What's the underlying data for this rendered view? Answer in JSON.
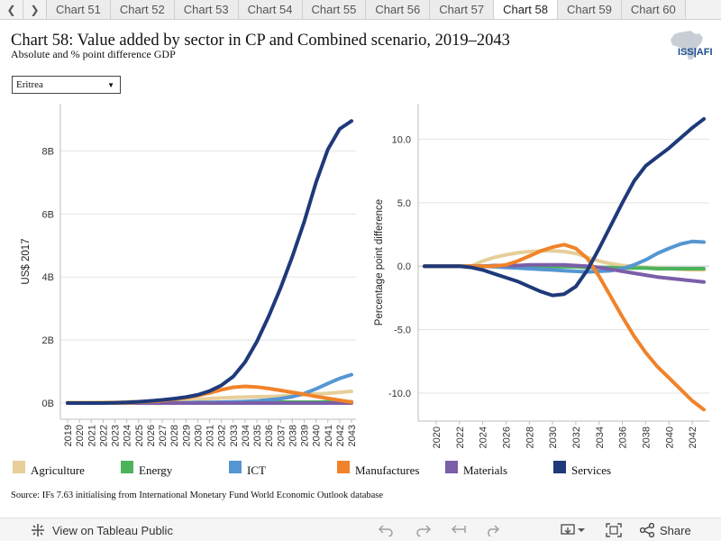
{
  "tabs": {
    "prev_icon": "chevron-left-icon",
    "next_icon": "chevron-right-icon",
    "items": [
      "Chart 51",
      "Chart 52",
      "Chart 53",
      "Chart 54",
      "Chart 55",
      "Chart 56",
      "Chart 57",
      "Chart 58",
      "Chart 59",
      "Chart 60"
    ],
    "active": "Chart 58"
  },
  "header": {
    "title": "Chart 58: Value added by sector in CP and Combined scenario, 2019–2043",
    "subtitle": "Absolute and % point difference GDP",
    "logo_text": "ISS|AFI"
  },
  "filter": {
    "selected": "Eritrea"
  },
  "legend": [
    {
      "name": "Agriculture",
      "color": "#e6cf9a"
    },
    {
      "name": "Energy",
      "color": "#4cb35c"
    },
    {
      "name": "ICT",
      "color": "#5596d2"
    },
    {
      "name": "Manufactures",
      "color": "#f0832a"
    },
    {
      "name": "Materials",
      "color": "#7b5ea8"
    },
    {
      "name": "Services",
      "color": "#1f3a7a"
    }
  ],
  "source": "Source: IFs 7.63 initialising from International Monetary Fund World Economic Outlook database",
  "toolbar": {
    "view_label": "View on Tableau Public",
    "share_label": "Share"
  },
  "chart_data": [
    {
      "type": "line",
      "ylabel": "US$ 2017",
      "xlabel": "",
      "ylim": [
        0,
        9.5
      ],
      "yticks": [
        0,
        2,
        4,
        6,
        8
      ],
      "ytick_labels": [
        "0B",
        "2B",
        "4B",
        "6B",
        "8B"
      ],
      "x": [
        2019,
        2020,
        2021,
        2022,
        2023,
        2024,
        2025,
        2026,
        2027,
        2028,
        2029,
        2030,
        2031,
        2032,
        2033,
        2034,
        2035,
        2036,
        2037,
        2038,
        2039,
        2040,
        2041,
        2042,
        2043
      ],
      "series": [
        {
          "name": "Agriculture",
          "values": [
            0.02,
            0.02,
            0.02,
            0.03,
            0.03,
            0.04,
            0.05,
            0.06,
            0.07,
            0.08,
            0.1,
            0.12,
            0.14,
            0.16,
            0.18,
            0.19,
            0.2,
            0.21,
            0.22,
            0.24,
            0.26,
            0.29,
            0.31,
            0.34,
            0.37
          ]
        },
        {
          "name": "Energy",
          "values": [
            0.0,
            0.0,
            0.0,
            0.0,
            0.0,
            0.0,
            0.0,
            0.0,
            0.0,
            0.01,
            0.01,
            0.01,
            0.01,
            0.02,
            0.02,
            0.02,
            0.02,
            0.03,
            0.03,
            0.03,
            0.03,
            0.03,
            0.04,
            0.04,
            0.04
          ]
        },
        {
          "name": "ICT",
          "values": [
            0.0,
            0.0,
            0.0,
            0.0,
            0.0,
            0.0,
            0.0,
            0.0,
            0.01,
            0.01,
            0.01,
            0.02,
            0.02,
            0.03,
            0.04,
            0.05,
            0.07,
            0.1,
            0.14,
            0.2,
            0.3,
            0.45,
            0.62,
            0.78,
            0.9
          ]
        },
        {
          "name": "Manufactures",
          "values": [
            0.0,
            0.0,
            0.0,
            0.0,
            0.0,
            0.01,
            0.03,
            0.05,
            0.08,
            0.12,
            0.17,
            0.24,
            0.32,
            0.42,
            0.5,
            0.53,
            0.51,
            0.46,
            0.4,
            0.34,
            0.28,
            0.21,
            0.15,
            0.09,
            0.03
          ]
        },
        {
          "name": "Materials",
          "values": [
            0.0,
            0.0,
            0.0,
            0.0,
            0.0,
            0.0,
            0.0,
            0.0,
            0.0,
            0.0,
            0.0,
            0.0,
            0.0,
            0.0,
            0.0,
            0.0,
            0.0,
            0.0,
            0.0,
            0.0,
            0.0,
            0.0,
            0.0,
            0.0,
            0.0
          ]
        },
        {
          "name": "Services",
          "values": [
            0.0,
            0.0,
            0.0,
            0.0,
            0.01,
            0.02,
            0.04,
            0.07,
            0.1,
            0.14,
            0.19,
            0.26,
            0.38,
            0.56,
            0.84,
            1.3,
            1.95,
            2.75,
            3.65,
            4.65,
            5.75,
            7.0,
            8.05,
            8.7,
            8.95
          ]
        }
      ]
    },
    {
      "type": "line",
      "ylabel": "Percentage point difference",
      "xlabel": "",
      "ylim": [
        -12.2,
        12.8
      ],
      "yticks": [
        -10,
        -5,
        0,
        5,
        10
      ],
      "ytick_labels": [
        "-10.0",
        "-5.0",
        "0.0",
        "5.0",
        "10.0"
      ],
      "xticks": [
        2020,
        2022,
        2024,
        2026,
        2028,
        2030,
        2032,
        2034,
        2036,
        2038,
        2040,
        2042
      ],
      "x": [
        2019,
        2020,
        2021,
        2022,
        2023,
        2024,
        2025,
        2026,
        2027,
        2028,
        2029,
        2030,
        2031,
        2032,
        2033,
        2034,
        2035,
        2036,
        2037,
        2038,
        2039,
        2040,
        2041,
        2042,
        2043
      ],
      "series": [
        {
          "name": "Agriculture",
          "values": [
            0.0,
            0.0,
            0.0,
            0.0,
            0.0,
            0.4,
            0.7,
            0.9,
            1.05,
            1.15,
            1.2,
            1.2,
            1.15,
            1.0,
            0.7,
            0.4,
            0.2,
            0.05,
            0.0,
            -0.1,
            -0.15,
            -0.2,
            -0.25,
            -0.3,
            -0.3
          ]
        },
        {
          "name": "Energy",
          "values": [
            0.0,
            0.0,
            0.0,
            0.0,
            0.0,
            0.0,
            0.0,
            -0.05,
            -0.05,
            -0.05,
            -0.05,
            -0.05,
            -0.05,
            -0.05,
            -0.1,
            -0.1,
            -0.1,
            -0.15,
            -0.15,
            -0.15,
            -0.2,
            -0.2,
            -0.2,
            -0.2,
            -0.2
          ]
        },
        {
          "name": "ICT",
          "values": [
            0.0,
            0.0,
            0.0,
            0.0,
            0.0,
            0.0,
            -0.05,
            -0.1,
            -0.15,
            -0.2,
            -0.25,
            -0.3,
            -0.35,
            -0.4,
            -0.45,
            -0.4,
            -0.35,
            -0.2,
            0.1,
            0.5,
            1.0,
            1.4,
            1.75,
            1.95,
            1.9
          ]
        },
        {
          "name": "Manufactures",
          "values": [
            0.0,
            0.0,
            0.0,
            0.0,
            0.0,
            0.0,
            0.0,
            0.1,
            0.4,
            0.8,
            1.2,
            1.5,
            1.7,
            1.4,
            0.6,
            -0.8,
            -2.4,
            -4.0,
            -5.5,
            -6.8,
            -7.9,
            -8.8,
            -9.7,
            -10.6,
            -11.3
          ]
        },
        {
          "name": "Materials",
          "values": [
            0.0,
            0.0,
            0.0,
            0.0,
            0.0,
            0.0,
            0.05,
            0.05,
            0.05,
            0.1,
            0.1,
            0.1,
            0.1,
            0.05,
            0.0,
            -0.1,
            -0.25,
            -0.4,
            -0.55,
            -0.7,
            -0.85,
            -0.95,
            -1.05,
            -1.15,
            -1.25
          ]
        },
        {
          "name": "Services",
          "values": [
            0.0,
            0.0,
            0.0,
            0.0,
            -0.1,
            -0.3,
            -0.6,
            -0.9,
            -1.2,
            -1.6,
            -2.0,
            -2.3,
            -2.2,
            -1.6,
            -0.3,
            1.4,
            3.2,
            5.0,
            6.7,
            7.9,
            8.6,
            9.3,
            10.1,
            10.9,
            11.6
          ]
        }
      ]
    }
  ]
}
